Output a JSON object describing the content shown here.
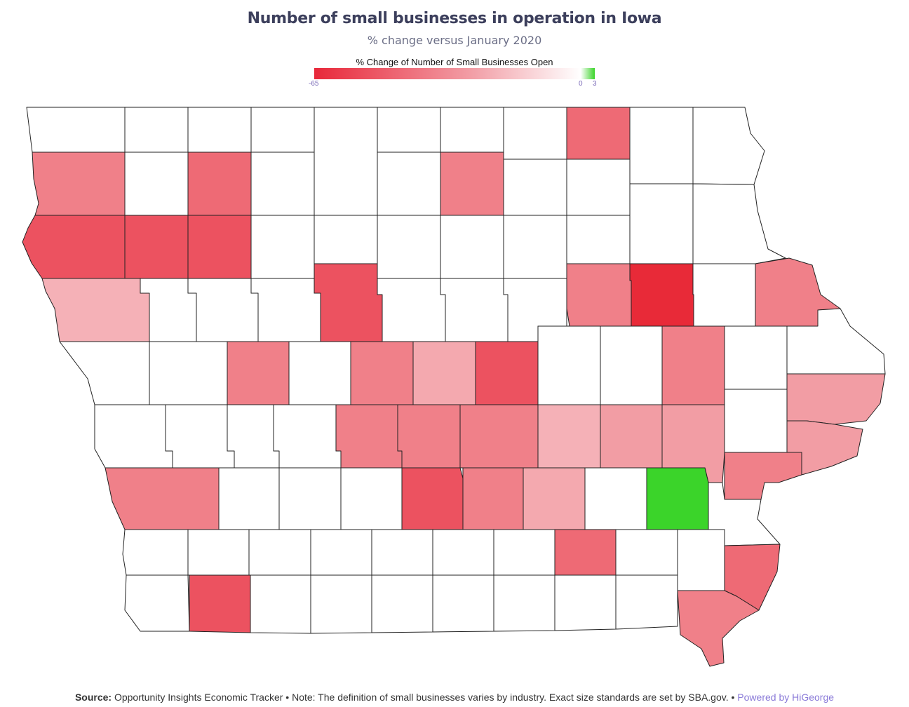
{
  "title": "Number of small businesses in operation in Iowa",
  "subtitle": "% change versus January 2020",
  "legend": {
    "title": "% Change of Number of Small Businesses Open",
    "min_label": "-65",
    "zero_label": "0",
    "max_label": "3",
    "colors": {
      "min": "#e8283a",
      "mid": "#ffffff",
      "max": "#3bd42a"
    }
  },
  "footer": {
    "source_label": "Source:",
    "text": " Opportunity Insights Economic Tracker • Note: The definition of small businesses varies by industry. Exact size standards are set by SBA.gov. • ",
    "powered": "Powered by HiGeorge"
  },
  "colors": {
    "c1": "#ee6a75",
    "c2": "#f08089",
    "c3": "#ec5260",
    "c4": "#f5b1b7",
    "c5": "#f29da4",
    "c6": "#f4a9af",
    "c7": "#e82a38",
    "c8": "#3bd42a",
    "blank": "#ffffff",
    "stroke": "#222222"
  }
}
